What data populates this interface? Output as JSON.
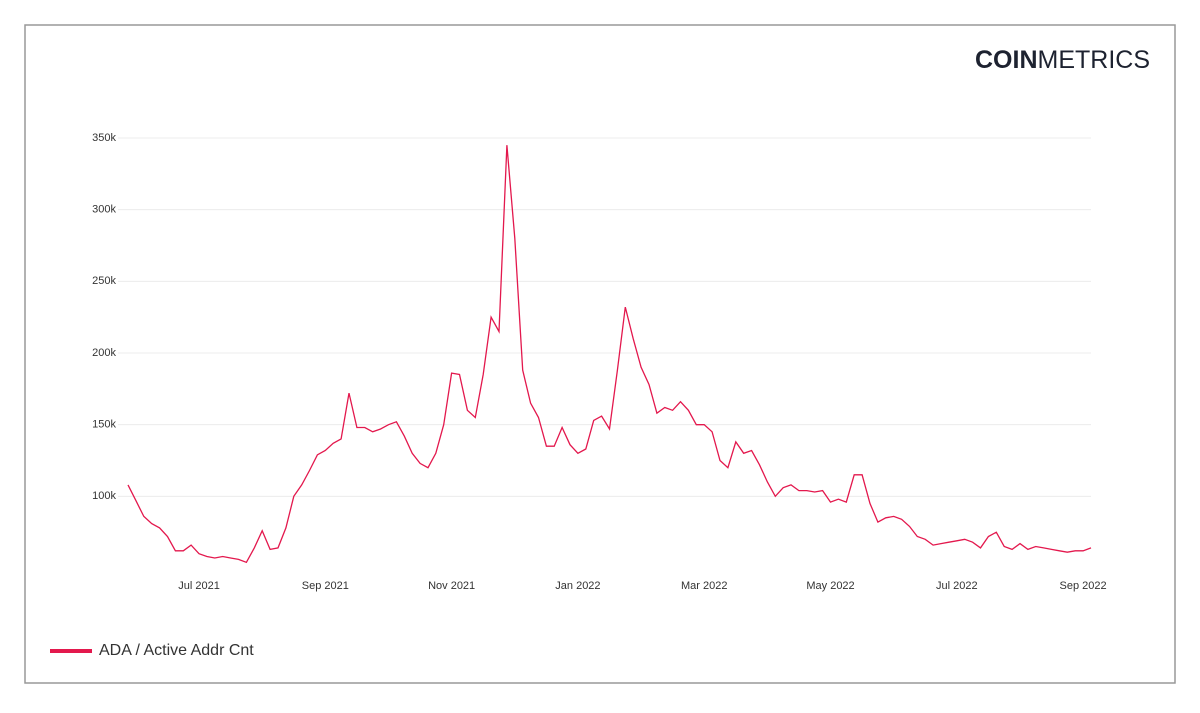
{
  "chart_data": {
    "type": "line",
    "brand": {
      "bold": "COIN",
      "light": "METRICS"
    },
    "categories": [
      null,
      null,
      null,
      null,
      null,
      null,
      null,
      null,
      null,
      "Jul 2021",
      null,
      null,
      null,
      null,
      null,
      null,
      null,
      null,
      null,
      null,
      null,
      null,
      null,
      null,
      null,
      "Sep 2021",
      null,
      null,
      null,
      null,
      null,
      null,
      null,
      null,
      null,
      null,
      null,
      null,
      null,
      null,
      null,
      "Nov 2021",
      null,
      null,
      null,
      null,
      null,
      null,
      null,
      null,
      null,
      null,
      null,
      null,
      null,
      null,
      null,
      "Jan 2022",
      null,
      null,
      null,
      null,
      null,
      null,
      null,
      null,
      null,
      null,
      null,
      null,
      null,
      null,
      null,
      "Mar 2022",
      null,
      null,
      null,
      null,
      null,
      null,
      null,
      null,
      null,
      null,
      null,
      null,
      null,
      null,
      null,
      "May 2022",
      null,
      null,
      null,
      null,
      null,
      null,
      null,
      null,
      null,
      null,
      null,
      null,
      null,
      null,
      null,
      "Jul 2022",
      null,
      null,
      null,
      null,
      null,
      null,
      null,
      null,
      null,
      null,
      null,
      null,
      null,
      null,
      null,
      "Sep 2022",
      null
    ],
    "series": [
      {
        "name": "ADA / Active Addr Cnt",
        "color": "#e3184d",
        "values": [
          108000,
          97000,
          86000,
          81000,
          78000,
          72000,
          62000,
          62000,
          66000,
          60000,
          58000,
          57000,
          58000,
          57000,
          56000,
          54000,
          64000,
          76000,
          63000,
          64000,
          78000,
          100000,
          108000,
          118000,
          129000,
          132000,
          137000,
          140000,
          172000,
          148000,
          148000,
          145000,
          147000,
          150000,
          152000,
          142000,
          130000,
          123000,
          120000,
          130000,
          150000,
          186000,
          185000,
          160000,
          155000,
          185000,
          225000,
          215000,
          345000,
          280000,
          188000,
          165000,
          155000,
          135000,
          135000,
          148000,
          136000,
          130000,
          133000,
          153000,
          156000,
          147000,
          188000,
          232000,
          210000,
          190000,
          178000,
          158000,
          162000,
          160000,
          166000,
          160000,
          150000,
          150000,
          145000,
          125000,
          120000,
          138000,
          130000,
          132000,
          122000,
          110000,
          100000,
          106000,
          108000,
          104000,
          104000,
          103000,
          104000,
          96000,
          98000,
          96000,
          115000,
          115000,
          95000,
          82000,
          85000,
          86000,
          84000,
          79000,
          72000,
          70000,
          66000,
          67000,
          68000,
          69000,
          70000,
          68000,
          64000,
          72000,
          75000,
          65000,
          63000,
          67000,
          63000,
          65000,
          64000,
          63000,
          62000,
          61000,
          62000,
          62000,
          64000
        ]
      }
    ],
    "ylim": [
      50000,
      350000
    ],
    "yticks": [
      {
        "value": 100000,
        "label": "100k"
      },
      {
        "value": 150000,
        "label": "150k"
      },
      {
        "value": 200000,
        "label": "200k"
      },
      {
        "value": 250000,
        "label": "250k"
      },
      {
        "value": 300000,
        "label": "300k"
      },
      {
        "value": 350000,
        "label": "350k"
      }
    ],
    "grid": true
  }
}
